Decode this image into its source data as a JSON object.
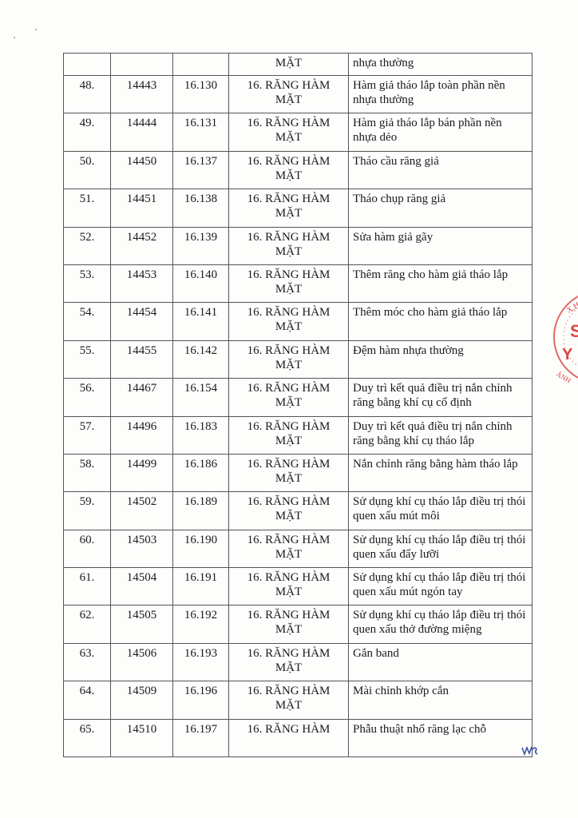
{
  "table": {
    "partial_row": {
      "group_cont": "MẶT",
      "name_cont": "nhựa thường"
    },
    "rows": [
      {
        "stt": "48.",
        "code": "14443",
        "ref": "16.130",
        "group": "16. RĂNG HÀM MẶT",
        "name": "Hàm giả tháo lắp toàn phần nền nhựa thường"
      },
      {
        "stt": "49.",
        "code": "14444",
        "ref": "16.131",
        "group": "16. RĂNG HÀM MẶT",
        "name": "Hàm giả tháo lắp bán phần nền nhựa dẻo"
      },
      {
        "stt": "50.",
        "code": "14450",
        "ref": "16.137",
        "group": "16. RĂNG HÀM MẶT",
        "name": "Tháo cầu răng giả"
      },
      {
        "stt": "51.",
        "code": "14451",
        "ref": "16.138",
        "group": "16. RĂNG HÀM MẶT",
        "name": "Tháo chụp răng giả"
      },
      {
        "stt": "52.",
        "code": "14452",
        "ref": "16.139",
        "group": "16. RĂNG HÀM MẶT",
        "name": "Sửa hàm giả gãy"
      },
      {
        "stt": "53.",
        "code": "14453",
        "ref": "16.140",
        "group": "16. RĂNG HÀM MẶT",
        "name": "Thêm răng cho hàm giả tháo lắp"
      },
      {
        "stt": "54.",
        "code": "14454",
        "ref": "16.141",
        "group": "16. RĂNG HÀM MẶT",
        "name": "Thêm móc cho hàm giả tháo lắp"
      },
      {
        "stt": "55.",
        "code": "14455",
        "ref": "16.142",
        "group": "16. RĂNG HÀM MẶT",
        "name": "Đệm hàm nhựa thường"
      },
      {
        "stt": "56.",
        "code": "14467",
        "ref": "16.154",
        "group": "16. RĂNG HÀM MẶT",
        "name": "Duy trì kết quả điều trị nắn chỉnh răng bằng khí cụ cố định"
      },
      {
        "stt": "57.",
        "code": "14496",
        "ref": "16.183",
        "group": "16. RĂNG HÀM MẶT",
        "name": "Duy trì kết quả điều trị nắn chỉnh răng bằng khí cụ tháo lắp"
      },
      {
        "stt": "58.",
        "code": "14499",
        "ref": "16.186",
        "group": "16. RĂNG HÀM MẶT",
        "name": "Nắn chỉnh răng bằng hàm tháo lắp"
      },
      {
        "stt": "59.",
        "code": "14502",
        "ref": "16.189",
        "group": "16. RĂNG HÀM MẶT",
        "name": "Sử dụng khí cụ tháo lắp điều trị thói quen xấu mút môi"
      },
      {
        "stt": "60.",
        "code": "14503",
        "ref": "16.190",
        "group": "16. RĂNG HÀM MẶT",
        "name": "Sử dụng khí cụ tháo lắp điều trị thói quen xấu đẩy lưỡi"
      },
      {
        "stt": "61.",
        "code": "14504",
        "ref": "16.191",
        "group": "16. RĂNG HÀM MẶT",
        "name": "Sử dụng khí cụ tháo lắp điều trị thói quen xấu mút ngón tay"
      },
      {
        "stt": "62.",
        "code": "14505",
        "ref": "16.192",
        "group": "16. RĂNG HÀM MẶT",
        "name": "Sử dụng khí cụ tháo lắp điều trị thói quen xấu thở đường miệng"
      },
      {
        "stt": "63.",
        "code": "14506",
        "ref": "16.193",
        "group": "16. RĂNG HÀM MẶT",
        "name": "Gắn band"
      },
      {
        "stt": "64.",
        "code": "14509",
        "ref": "16.196",
        "group": "16. RĂNG HÀM MẶT",
        "name": "Mài chỉnh khớp cắn"
      },
      {
        "stt": "65.",
        "code": "14510",
        "ref": "16.197",
        "group": "16. RĂNG HÀM",
        "name": "Phẫu thuật nhổ răng lạc chỗ"
      }
    ]
  },
  "stamp": {
    "color": "#d9463f",
    "text": "X.H. S Y ÀNH"
  },
  "signature": {
    "color": "#3a52a8"
  }
}
